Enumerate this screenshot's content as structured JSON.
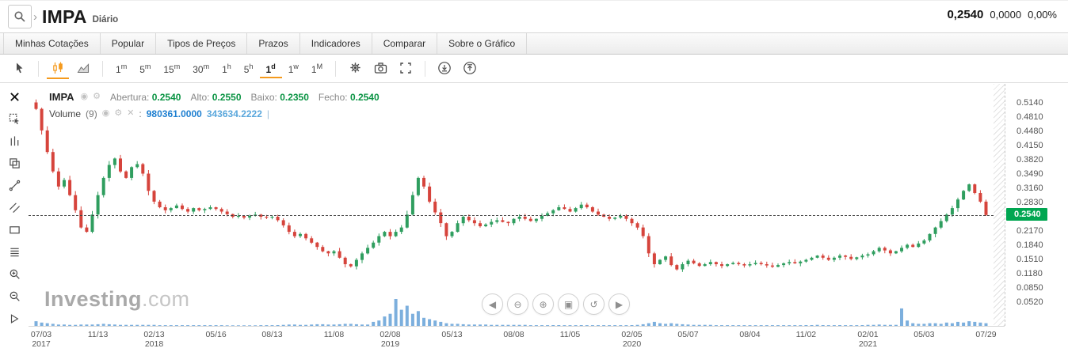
{
  "header": {
    "symbol": "IMPA",
    "timeframe_label": "Diário",
    "quote": {
      "last": "0,2540",
      "change": "0,0000",
      "change_pct": "0,00%"
    }
  },
  "menu": {
    "items": [
      "Minhas Cotações",
      "Popular",
      "Tipos de Preços",
      "Prazos",
      "Indicadores",
      "Comparar",
      "Sobre o Gráfico"
    ]
  },
  "toolbar": {
    "timeframes": [
      "1m",
      "5m",
      "15m",
      "30m",
      "1h",
      "5h",
      "1d",
      "1w",
      "1M"
    ],
    "active_timeframe": "1d"
  },
  "legend": {
    "symbol": "IMPA",
    "fields": [
      {
        "label": "Abertura:",
        "value": "0.2540"
      },
      {
        "label": "Alto:",
        "value": "0.2550"
      },
      {
        "label": "Baixo:",
        "value": "0.2350"
      },
      {
        "label": "Fecho:",
        "value": "0.2540"
      }
    ],
    "volume_label": "Volume",
    "volume_param": "(9)",
    "colon": ":",
    "volume_value_1": "980361.0000",
    "volume_value_2": "343634.2222",
    "separator": "|"
  },
  "watermark": {
    "bold": "Investing",
    "light": ".com"
  },
  "nav_buttons": [
    {
      "name": "pan-left",
      "glyph": "◀"
    },
    {
      "name": "zoom-out",
      "glyph": "⊖"
    },
    {
      "name": "zoom-in",
      "glyph": "⊕"
    },
    {
      "name": "zoom-box",
      "glyph": "▣"
    },
    {
      "name": "reset-view",
      "glyph": "↺"
    },
    {
      "name": "pan-right",
      "glyph": "▶"
    }
  ],
  "colors": {
    "accent": "#f59a1d",
    "candle_up": "#2f9e5f",
    "candle_down": "#d6443c",
    "value_green": "#0b9444",
    "volume_bar": "#5b9bd5",
    "vol_value1": "#1e7fd0",
    "vol_value2": "#5aa7dc",
    "badge_bg": "#00a651"
  },
  "chart_data": {
    "type": "candlestick",
    "title": "IMPA Diário",
    "ylim": [
      0.052,
      0.514
    ],
    "last_price": 0.254,
    "last_price_label": "0.2540",
    "legend_position": "top-left",
    "grid": false,
    "y_tick_labels": [
      "0.5140",
      "0.4810",
      "0.4480",
      "0.4150",
      "0.3820",
      "0.3490",
      "0.3160",
      "0.2830",
      "0.2170",
      "0.1840",
      "0.1510",
      "0.1180",
      "0.0850",
      "0.0520"
    ],
    "x_ticks": [
      {
        "date": "07/03",
        "year": "2017"
      },
      {
        "date": "11/13"
      },
      {
        "date": "02/13",
        "year": "2018"
      },
      {
        "date": "05/16"
      },
      {
        "date": "08/13"
      },
      {
        "date": "11/08"
      },
      {
        "date": "02/08",
        "year": "2019"
      },
      {
        "date": "05/13"
      },
      {
        "date": "08/08"
      },
      {
        "date": "11/05"
      },
      {
        "date": "02/05",
        "year": "2020"
      },
      {
        "date": "05/07"
      },
      {
        "date": "08/04"
      },
      {
        "date": "11/02"
      },
      {
        "date": "02/01",
        "year": "2021"
      },
      {
        "date": "05/03"
      },
      {
        "date": "07/29"
      }
    ],
    "closes": [
      0.5,
      0.45,
      0.4,
      0.355,
      0.32,
      0.335,
      0.3,
      0.265,
      0.225,
      0.215,
      0.255,
      0.3,
      0.34,
      0.37,
      0.385,
      0.355,
      0.34,
      0.365,
      0.372,
      0.35,
      0.31,
      0.285,
      0.272,
      0.265,
      0.27,
      0.276,
      0.268,
      0.262,
      0.27,
      0.265,
      0.268,
      0.272,
      0.268,
      0.262,
      0.256,
      0.25,
      0.252,
      0.248,
      0.252,
      0.255,
      0.25,
      0.248,
      0.25,
      0.242,
      0.23,
      0.215,
      0.205,
      0.21,
      0.2,
      0.19,
      0.18,
      0.17,
      0.165,
      0.17,
      0.155,
      0.14,
      0.135,
      0.15,
      0.165,
      0.178,
      0.19,
      0.205,
      0.215,
      0.205,
      0.215,
      0.225,
      0.255,
      0.3,
      0.34,
      0.32,
      0.285,
      0.26,
      0.235,
      0.205,
      0.215,
      0.235,
      0.25,
      0.242,
      0.235,
      0.228,
      0.232,
      0.238,
      0.242,
      0.238,
      0.235,
      0.245,
      0.25,
      0.245,
      0.24,
      0.245,
      0.252,
      0.258,
      0.265,
      0.272,
      0.268,
      0.262,
      0.27,
      0.278,
      0.272,
      0.262,
      0.255,
      0.25,
      0.245,
      0.248,
      0.252,
      0.245,
      0.235,
      0.225,
      0.205,
      0.165,
      0.14,
      0.15,
      0.158,
      0.138,
      0.128,
      0.14,
      0.148,
      0.142,
      0.136,
      0.14,
      0.145,
      0.14,
      0.136,
      0.14,
      0.143,
      0.14,
      0.137,
      0.14,
      0.143,
      0.14,
      0.137,
      0.134,
      0.138,
      0.142,
      0.145,
      0.142,
      0.146,
      0.15,
      0.155,
      0.16,
      0.155,
      0.15,
      0.155,
      0.16,
      0.157,
      0.152,
      0.156,
      0.16,
      0.163,
      0.17,
      0.178,
      0.172,
      0.165,
      0.17,
      0.178,
      0.185,
      0.18,
      0.188,
      0.195,
      0.21,
      0.225,
      0.24,
      0.255,
      0.27,
      0.29,
      0.31,
      0.325,
      0.305,
      0.285,
      0.254
    ],
    "volumes": [
      7,
      5,
      4,
      3,
      2,
      2,
      1.5,
      1.5,
      2,
      2,
      2,
      2.5,
      3,
      2.5,
      2,
      1.5,
      1.5,
      1.5,
      1.5,
      1.5,
      1.5,
      1.5,
      1,
      1,
      1,
      1,
      1,
      1,
      1,
      1,
      1,
      1,
      1,
      1,
      0.8,
      0.8,
      0.8,
      0.8,
      0.8,
      0.8,
      1,
      1,
      1,
      1.2,
      1.5,
      2,
      2,
      1.5,
      1.5,
      2,
      2.5,
      2.5,
      2,
      2,
      2.5,
      3,
      3,
      2.5,
      2,
      2,
      6,
      8,
      14,
      18,
      40,
      24,
      30,
      18,
      22,
      12,
      10,
      8,
      6,
      4,
      3,
      3,
      2.5,
      2,
      2,
      2,
      2,
      1.5,
      1.5,
      1.5,
      1.5,
      1.5,
      1.5,
      1.5,
      1,
      1,
      1,
      1,
      1.2,
      1.2,
      1,
      1,
      1,
      1.2,
      1,
      1,
      1,
      1,
      1,
      1,
      1,
      1,
      1.2,
      1.5,
      2.5,
      4,
      6,
      4,
      3,
      4,
      3,
      2.5,
      2,
      1.5,
      1.5,
      1.5,
      1.5,
      1,
      1,
      1,
      1,
      1,
      1,
      1,
      1,
      1,
      1,
      1,
      1,
      1,
      1,
      1,
      1,
      1.2,
      1.2,
      1.5,
      1.2,
      1,
      1,
      1.2,
      1,
      1,
      1,
      1.2,
      1.5,
      1.5,
      2,
      1.5,
      1.5,
      1.5,
      26,
      8,
      4,
      3,
      3,
      4,
      4,
      3,
      5,
      4,
      6,
      5,
      7,
      6,
      5,
      4
    ]
  }
}
